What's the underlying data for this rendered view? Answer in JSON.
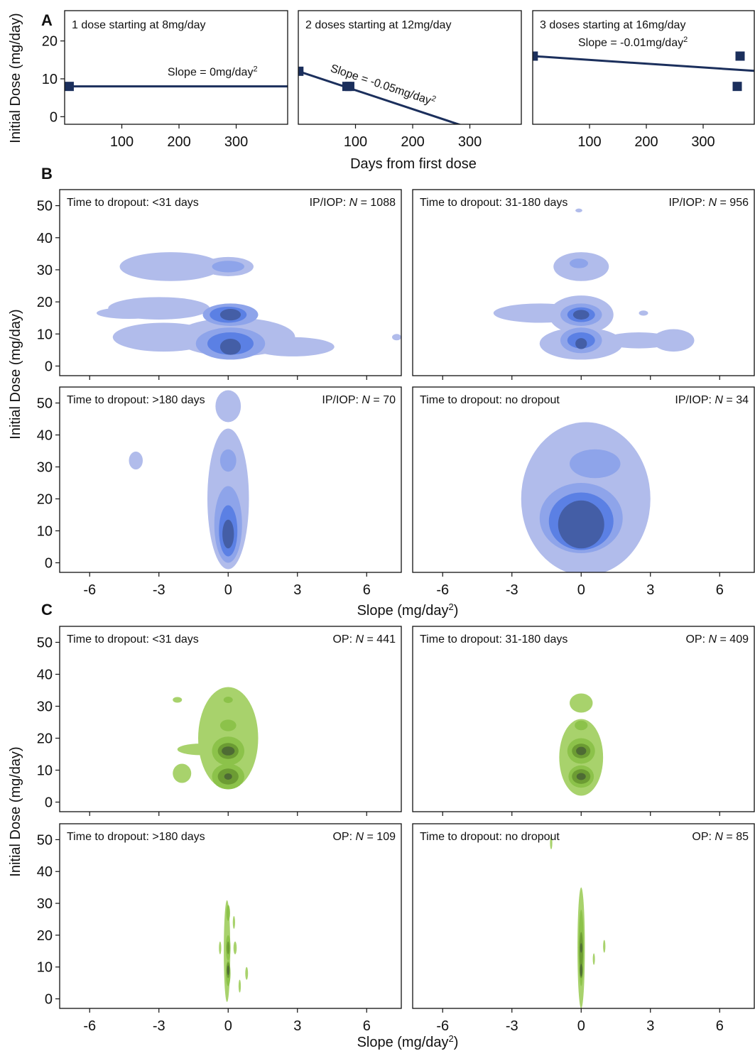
{
  "colors": {
    "axis": "#111111",
    "dose_line": "#1b2f5c",
    "blue_levels": [
      "#b1bceb",
      "#8ea4ea",
      "#5b80e4",
      "#445ea6"
    ],
    "green_levels": [
      "#a8d26c",
      "#8cc24a",
      "#6c9c33",
      "#4e6b34"
    ]
  },
  "panel_A": {
    "label": "A",
    "ylabel": "Initial Dose (mg/day)",
    "xlabel": "Days from first dose",
    "ylim": [
      -2,
      28
    ],
    "xlim": [
      0,
      390
    ],
    "yticks": [
      0,
      10,
      20
    ],
    "xticks": [
      100,
      200,
      300
    ]
  },
  "panel_B": {
    "label": "B",
    "ylabel": "Initial Dose (mg/day)",
    "xlabel": "Slope (mg/day",
    "xlabel_sup": "2",
    "xlabel_end": ")",
    "xlim": [
      -7.3,
      7.5
    ],
    "ylim": [
      -3,
      55
    ],
    "xticks": [
      -6,
      -3,
      0,
      3,
      6
    ],
    "yticks": [
      0,
      10,
      20,
      30,
      40,
      50
    ]
  },
  "panel_C": {
    "label": "C",
    "ylabel": "Initial Dose (mg/day)",
    "xlabel": "Slope (mg/day",
    "xlabel_sup": "2",
    "xlabel_end": ")",
    "xlim": [
      -7.3,
      7.5
    ],
    "ylim": [
      -3,
      55
    ],
    "xticks": [
      -6,
      -3,
      0,
      3,
      6
    ],
    "yticks": [
      0,
      10,
      20,
      30,
      40,
      50
    ]
  },
  "chart_data": [
    {
      "type": "line",
      "panel": "A1",
      "title": "1 dose starting at 8mg/day",
      "points": [
        [
          8,
          8
        ]
      ],
      "line": {
        "intercept": 8,
        "slope": 0
      },
      "annotation": {
        "prefix": "Slope = 0mg/day",
        "sup": "2",
        "x": 180,
        "y": 10.8,
        "rotate": false
      }
    },
    {
      "type": "line",
      "panel": "A2",
      "title": "2 doses starting at 12mg/day",
      "points": [
        [
          1,
          12
        ],
        [
          85,
          8
        ],
        [
          90,
          8
        ]
      ],
      "line": {
        "intercept": 12,
        "slope": -0.05
      },
      "annotation": {
        "prefix": "Slope = -0.05mg/day",
        "sup": "2",
        "x": 55,
        "y": 12,
        "rotate": true
      }
    },
    {
      "type": "line",
      "panel": "A3",
      "title": "3 doses starting at 16mg/day",
      "points": [
        [
          1,
          16
        ],
        [
          365,
          16
        ],
        [
          360,
          8
        ]
      ],
      "line": {
        "intercept": 16,
        "slope": -0.01
      },
      "annotation": {
        "prefix": "Slope = -0.01mg/day",
        "sup": "2",
        "x": 80,
        "y": 18.6,
        "rotate": false
      }
    },
    {
      "type": "heatmap",
      "panel": "B1",
      "subtitle": "Time to dropout: <31 days",
      "n_label": "IP/IOP: ",
      "n_value": "1088",
      "blobs": [
        [
          [
            -2.5,
            31,
            2.2,
            4.5,
            1
          ],
          [
            0,
            31,
            1.1,
            3,
            1
          ],
          [
            -3,
            18,
            2.2,
            3.5,
            1
          ],
          [
            -2.8,
            9,
            2.2,
            4.5,
            1
          ],
          [
            0.3,
            9,
            2.6,
            6,
            1
          ],
          [
            2.8,
            6,
            1.8,
            3,
            1
          ],
          [
            -4.3,
            16.5,
            1.4,
            1.8,
            1
          ],
          [
            -4,
            8,
            0.4,
            1,
            1
          ],
          [
            7.3,
            9,
            0.2,
            1,
            1
          ]
        ],
        [
          [
            0,
            31,
            0.7,
            1.8,
            1
          ],
          [
            0.1,
            16,
            1.2,
            3.5,
            1
          ],
          [
            0.1,
            7,
            1.5,
            5,
            1
          ]
        ],
        [
          [
            0,
            16,
            0.8,
            2.5,
            1
          ],
          [
            0.1,
            7,
            1,
            3.5,
            1
          ]
        ],
        [
          [
            0.1,
            16,
            0.45,
            1.8,
            1
          ],
          [
            0.1,
            6,
            0.45,
            2.5,
            1
          ]
        ]
      ]
    },
    {
      "type": "heatmap",
      "panel": "B2",
      "subtitle": "Time to dropout: 31-180 days",
      "n_label": "IP/IOP: ",
      "n_value": "956",
      "blobs": [
        [
          [
            0,
            31,
            1.2,
            4.5,
            1
          ],
          [
            -1.8,
            16.5,
            2,
            3,
            1
          ],
          [
            0,
            16,
            1.4,
            6,
            1
          ],
          [
            0,
            7,
            1.8,
            5,
            1
          ],
          [
            2.5,
            8,
            1.5,
            2.5,
            1
          ],
          [
            4,
            8,
            0.9,
            3.5,
            1
          ],
          [
            2.7,
            16.5,
            0.2,
            0.8,
            1
          ],
          [
            -0.1,
            48.5,
            0.15,
            0.6,
            1
          ]
        ],
        [
          [
            -0.1,
            32,
            0.4,
            1.5,
            1
          ],
          [
            0,
            16,
            0.9,
            3.5,
            1
          ],
          [
            0,
            8,
            0.9,
            4,
            1
          ]
        ],
        [
          [
            0,
            16,
            0.6,
            2.3,
            1
          ],
          [
            0,
            8,
            0.6,
            2.5,
            1
          ]
        ],
        [
          [
            0,
            16,
            0.35,
            1.5,
            1
          ],
          [
            0,
            7,
            0.25,
            1.7,
            1
          ]
        ]
      ]
    },
    {
      "type": "heatmap",
      "panel": "B3",
      "subtitle": "Time to dropout: >180 days",
      "n_label": "IP/IOP: ",
      "n_value": "70",
      "blobs": [
        [
          [
            0,
            49,
            0.55,
            5,
            1
          ],
          [
            0,
            20,
            0.9,
            22,
            1
          ],
          [
            -4,
            32,
            0.3,
            2.8,
            1
          ]
        ],
        [
          [
            0,
            32,
            0.35,
            3.5,
            1
          ],
          [
            0,
            12,
            0.6,
            12,
            1
          ]
        ],
        [
          [
            0,
            10,
            0.4,
            8,
            1
          ]
        ],
        [
          [
            0,
            9,
            0.25,
            4.5,
            1
          ]
        ]
      ]
    },
    {
      "type": "heatmap",
      "panel": "B4",
      "subtitle": "Time to dropout: no dropout",
      "n_label": "IP/IOP: ",
      "n_value": "34",
      "blobs": [
        [
          [
            0.2,
            20,
            2.8,
            24,
            1.3
          ]
        ],
        [
          [
            0.6,
            31,
            1.1,
            4.5,
            1.3
          ],
          [
            0,
            14,
            1.8,
            11,
            1.2
          ]
        ],
        [
          [
            0,
            13,
            1.4,
            9,
            1.2
          ]
        ],
        [
          [
            0,
            12,
            1,
            7.5,
            1.2
          ]
        ]
      ]
    },
    {
      "type": "heatmap",
      "panel": "C1",
      "subtitle": "Time to dropout: <31 days",
      "n_label": "OP: ",
      "n_value": "441",
      "blobs": [
        [
          [
            0,
            20,
            1.3,
            16,
            1
          ],
          [
            -1.2,
            16.5,
            1,
            1.8,
            1
          ],
          [
            -2,
            9,
            0.4,
            3,
            1
          ],
          [
            -2.2,
            32,
            0.2,
            0.9,
            1
          ]
        ],
        [
          [
            0,
            32,
            0.2,
            1,
            1
          ],
          [
            0,
            24,
            0.35,
            1.8,
            1
          ],
          [
            0,
            16,
            0.7,
            4.5,
            1
          ],
          [
            0,
            8,
            0.7,
            4,
            1
          ]
        ],
        [
          [
            0,
            16,
            0.45,
            2.5,
            1
          ],
          [
            0,
            8,
            0.45,
            2.5,
            1
          ]
        ],
        [
          [
            0,
            16,
            0.28,
            1.4,
            1
          ],
          [
            0,
            8,
            0.17,
            1,
            1
          ]
        ]
      ]
    },
    {
      "type": "heatmap",
      "panel": "C2",
      "subtitle": "Time to dropout: 31-180 days",
      "n_label": "OP: ",
      "n_value": "409",
      "blobs": [
        [
          [
            0,
            31,
            0.5,
            3,
            1
          ],
          [
            0,
            14,
            0.95,
            12,
            1
          ]
        ],
        [
          [
            0,
            24,
            0.28,
            1.5,
            1
          ],
          [
            0,
            16,
            0.6,
            4,
            1
          ],
          [
            0,
            8,
            0.55,
            3.5,
            1
          ]
        ],
        [
          [
            0,
            16,
            0.4,
            2.3,
            1
          ],
          [
            0,
            8,
            0.4,
            2.3,
            1
          ]
        ],
        [
          [
            0,
            16,
            0.22,
            1.3,
            1
          ],
          [
            0,
            8,
            0.2,
            1.1,
            1
          ]
        ]
      ]
    },
    {
      "type": "heatmap",
      "panel": "C3",
      "subtitle": "Time to dropout: >180 days",
      "n_label": "OP: ",
      "n_value": "109",
      "blobs": [
        [
          [
            -0.05,
            15,
            0.14,
            16,
            1
          ],
          [
            -0.35,
            16,
            0.05,
            2,
            1
          ],
          [
            0.3,
            16,
            0.07,
            2,
            1
          ],
          [
            0.8,
            8,
            0.06,
            2,
            1
          ],
          [
            0.5,
            4,
            0.05,
            2,
            1
          ],
          [
            0.25,
            24,
            0.05,
            2,
            1
          ]
        ],
        [
          [
            0,
            16,
            0.1,
            4,
            1
          ],
          [
            0,
            8,
            0.1,
            4,
            1
          ],
          [
            0,
            27,
            0.08,
            2.5,
            1
          ]
        ],
        [
          [
            0,
            9,
            0.07,
            2.5,
            1
          ],
          [
            0,
            16,
            0.06,
            2,
            1
          ]
        ],
        [
          [
            0,
            9,
            0.03,
            1.5,
            1
          ]
        ]
      ]
    },
    {
      "type": "heatmap",
      "panel": "C4",
      "subtitle": "Time to dropout: no dropout",
      "n_label": "OP: ",
      "n_value": "85",
      "blobs": [
        [
          [
            0,
            16,
            0.16,
            19,
            1
          ],
          [
            -1.3,
            49,
            0.05,
            2,
            1
          ],
          [
            1,
            16.5,
            0.05,
            2,
            1
          ],
          [
            0.55,
            12.5,
            0.04,
            1.8,
            1
          ]
        ],
        [
          [
            0,
            16,
            0.11,
            12,
            1
          ]
        ],
        [
          [
            0,
            15,
            0.08,
            6,
            1
          ],
          [
            0,
            9,
            0.07,
            2.5,
            1
          ]
        ],
        [
          [
            0,
            9,
            0.04,
            2,
            1
          ],
          [
            0,
            16,
            0.04,
            1.5,
            1
          ]
        ]
      ]
    }
  ]
}
